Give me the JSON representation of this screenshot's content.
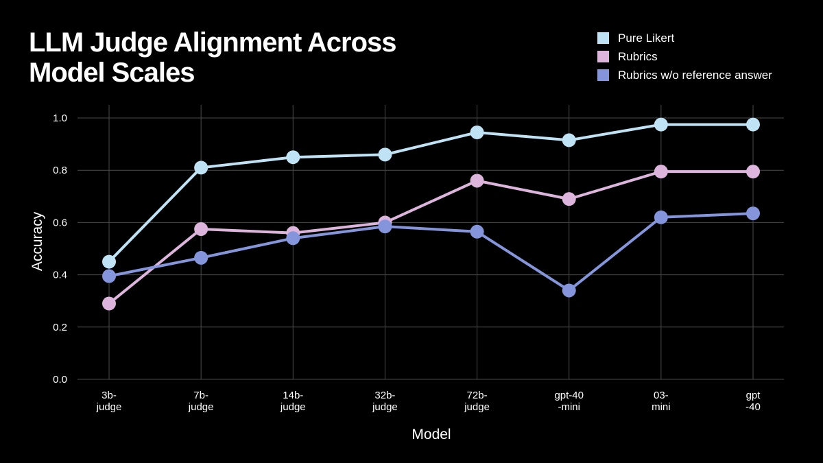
{
  "title": "LLM Judge Alignment Across\nModel Scales",
  "legend": [
    {
      "label": "Pure Likert",
      "color": "#bfe3f5"
    },
    {
      "label": "Rubrics",
      "color": "#dcb4dc"
    },
    {
      "label": "Rubrics w/o reference answer",
      "color": "#8495db"
    }
  ],
  "chart_data": {
    "type": "line",
    "title": "LLM Judge Alignment Across Model Scales",
    "xlabel": "Model",
    "ylabel": "Accuracy",
    "categories": [
      "3b-\njudge",
      "7b-\njudge",
      "14b-\njudge",
      "32b-\njudge",
      "72b-\njudge",
      "gpt-40\n-mini",
      "03-\nmini",
      "gpt\n-40"
    ],
    "ylim": [
      0.0,
      1.05
    ],
    "yticks": [
      "0.0",
      "0.2",
      "0.4",
      "0.6",
      "0.8",
      "1.0"
    ],
    "grid": true,
    "legend_position": "top-right",
    "series": [
      {
        "name": "Pure Likert",
        "color": "#bfe3f5",
        "values": [
          0.45,
          0.81,
          0.85,
          0.86,
          0.945,
          0.915,
          0.975,
          0.975
        ]
      },
      {
        "name": "Rubrics",
        "color": "#dcb4dc",
        "values": [
          0.29,
          0.575,
          0.56,
          0.6,
          0.76,
          0.69,
          0.795,
          0.795
        ]
      },
      {
        "name": "Rubrics w/o reference answer",
        "color": "#8495db",
        "values": [
          0.395,
          0.465,
          0.54,
          0.585,
          0.565,
          0.34,
          0.62,
          0.635
        ]
      }
    ]
  }
}
